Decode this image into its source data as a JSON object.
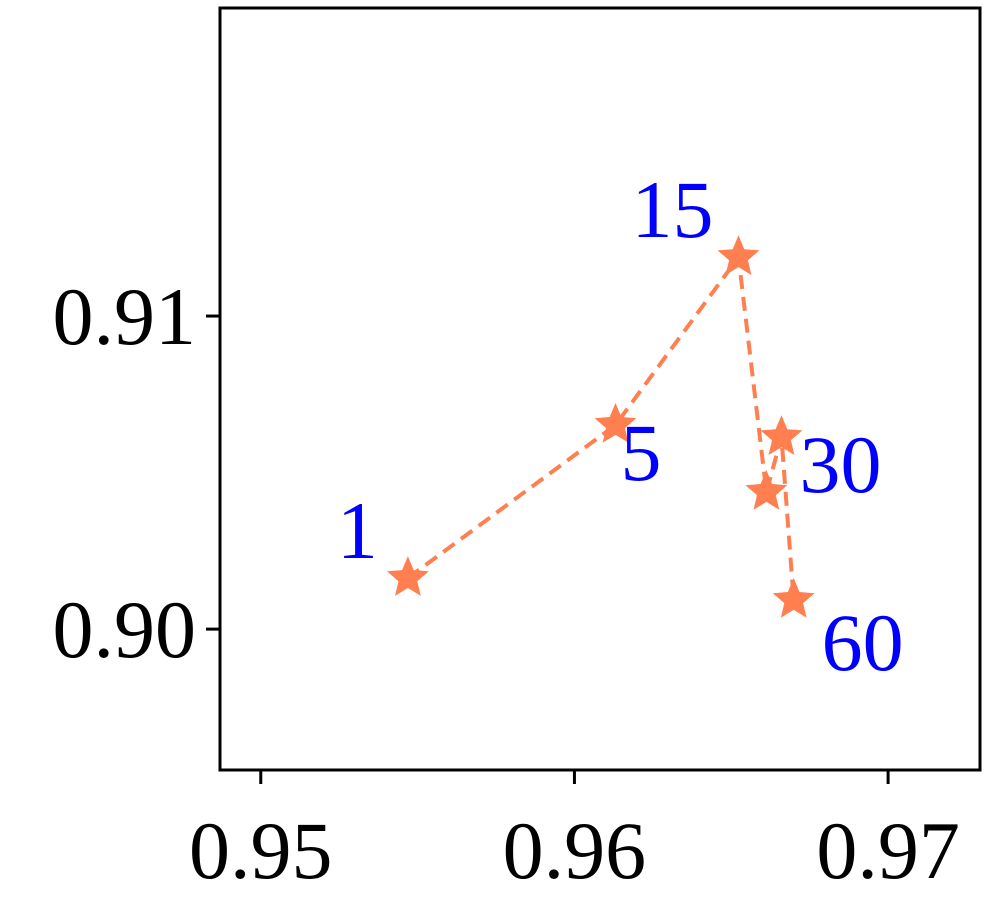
{
  "chart_data": {
    "type": "line",
    "x": [
      0.95469,
      0.96131,
      0.96523,
      0.96612,
      0.9666,
      0.96699
    ],
    "series": [
      {
        "color": "#ff7f50",
        "label_color": "#0000ff",
        "values": [
          0.90163,
          0.90652,
          0.91188,
          0.90438,
          0.90613,
          0.90093
        ],
        "point_labels": [
          "1",
          "5",
          "15",
          null,
          "30",
          "60"
        ]
      }
    ],
    "xlim": [
      0.9487,
      0.97293
    ],
    "xticks": [
      {
        "value": 0.95,
        "label": "0.95"
      },
      {
        "value": 0.96,
        "label": "0.96"
      },
      {
        "value": 0.97,
        "label": "0.97"
      }
    ],
    "ylim": [
      0.8955,
      0.91984
    ],
    "yticks": [
      {
        "value": 0.9,
        "label": "0.90"
      },
      {
        "value": 0.91,
        "label": "0.91"
      }
    ],
    "grid": false
  }
}
